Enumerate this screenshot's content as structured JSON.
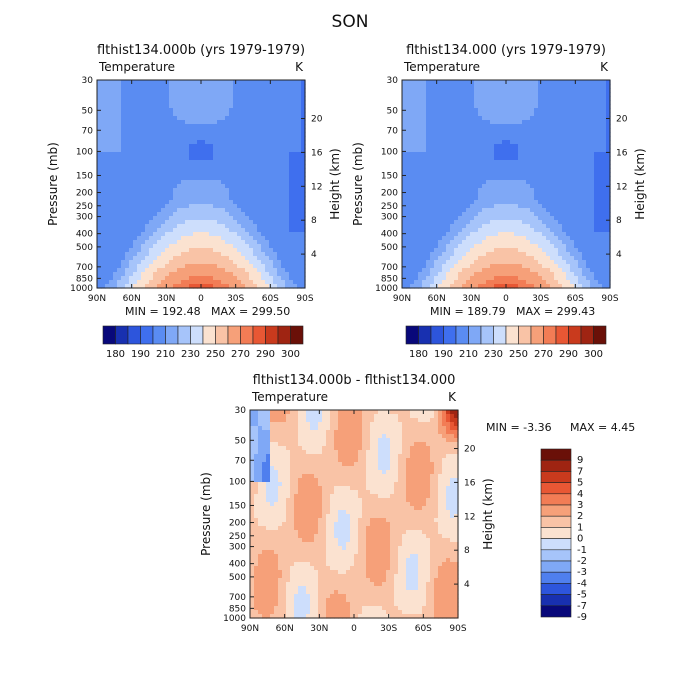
{
  "figure": {
    "title": "SON"
  },
  "chart_data": [
    {
      "type": "heatmap",
      "title": "flthist134.000b (yrs 1979-1979)",
      "variable": "Temperature",
      "units": "K",
      "ylabel": "Pressure (mb)",
      "ylabel_right": "Height (km)",
      "x_ticks": [
        "90N",
        "60N",
        "30N",
        "0",
        "30S",
        "60S",
        "90S"
      ],
      "y_ticks": [
        30,
        50,
        70,
        100,
        150,
        200,
        250,
        300,
        400,
        500,
        700,
        850,
        1000
      ],
      "height_ticks": [
        20,
        16,
        12,
        8,
        4
      ],
      "ylim": [
        30,
        1000
      ],
      "y_scale": "log",
      "min_label": "MIN = 192.48",
      "max_label": "MAX = 299.50",
      "min": 192.48,
      "max": 299.5,
      "colorbar_labels": [
        "180",
        "190",
        "210",
        "230",
        "250",
        "270",
        "290",
        "300"
      ]
    },
    {
      "type": "heatmap",
      "title": "flthist134.000 (yrs 1979-1979)",
      "variable": "Temperature",
      "units": "K",
      "ylabel": "Pressure (mb)",
      "ylabel_right": "Height (km)",
      "x_ticks": [
        "90N",
        "60N",
        "30N",
        "0",
        "30S",
        "60S",
        "90S"
      ],
      "y_ticks": [
        30,
        50,
        70,
        100,
        150,
        200,
        250,
        300,
        400,
        500,
        700,
        850,
        1000
      ],
      "height_ticks": [
        20,
        16,
        12,
        8,
        4
      ],
      "ylim": [
        30,
        1000
      ],
      "y_scale": "log",
      "min_label": "MIN = 189.79",
      "max_label": "MAX = 299.43",
      "min": 189.79,
      "max": 299.43,
      "colorbar_labels": [
        "180",
        "190",
        "210",
        "230",
        "250",
        "270",
        "290",
        "300"
      ]
    },
    {
      "type": "heatmap",
      "title": "flthist134.000b - flthist134.000",
      "variable": "Temperature",
      "units": "K",
      "ylabel": "Pressure (mb)",
      "ylabel_right": "Height (km)",
      "x_ticks": [
        "90N",
        "60N",
        "30N",
        "0",
        "30S",
        "60S",
        "90S"
      ],
      "y_ticks": [
        30,
        50,
        70,
        100,
        150,
        200,
        250,
        300,
        400,
        500,
        700,
        850,
        1000
      ],
      "height_ticks": [
        20,
        16,
        12,
        8,
        4
      ],
      "ylim": [
        30,
        1000
      ],
      "y_scale": "log",
      "min_label": "MIN =   -3.36",
      "max_label": "MAX =    4.45",
      "min": -3.36,
      "max": 4.45,
      "colorbar_labels": [
        "9",
        "7",
        "5",
        "4",
        "3",
        "2",
        "1",
        "0",
        "-1",
        "-2",
        "-3",
        "-4",
        "-5",
        "-7",
        "-9"
      ]
    }
  ],
  "colors": {
    "temp_scale": [
      "#08087a",
      "#1830b0",
      "#2d55dc",
      "#3f6fee",
      "#5a8cf2",
      "#7fa8f6",
      "#a6c4fa",
      "#cddefc",
      "#fbe2d0",
      "#f9c3a6",
      "#f6a079",
      "#f27c55",
      "#e85734",
      "#c93a1d",
      "#9f2412",
      "#6a1008"
    ],
    "diff_scale": [
      "#08087a",
      "#1830b0",
      "#2d55dc",
      "#4f7fee",
      "#7fa8f6",
      "#a6c4fa",
      "#cddefc",
      "#fbe2d0",
      "#f9c3a6",
      "#f6a079",
      "#f27c55",
      "#e85734",
      "#c93a1d",
      "#9f2412",
      "#6a1008"
    ]
  }
}
